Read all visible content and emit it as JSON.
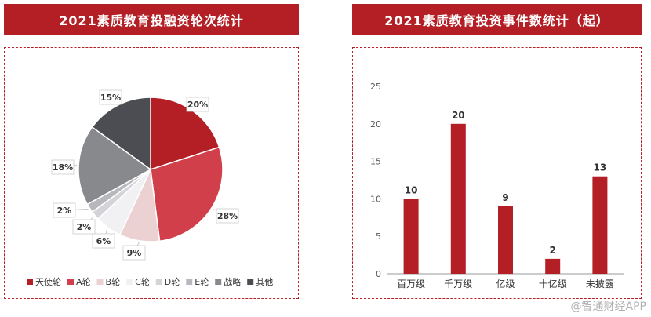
{
  "charts": [
    {
      "title": "2021素质教育投融资轮次统计",
      "chart_data": {
        "type": "pie",
        "title": "2021素质教育投融资轮次统计",
        "slices": [
          {
            "label": "天使轮",
            "value": 20,
            "text": "20%",
            "color": "#b31f24"
          },
          {
            "label": "A轮",
            "value": 28,
            "text": "28%",
            "color": "#d1404a"
          },
          {
            "label": "B轮",
            "value": 9,
            "text": "9%",
            "color": "#ecd1d3"
          },
          {
            "label": "C轮",
            "value": 6,
            "text": "6%",
            "color": "#f1f1f3"
          },
          {
            "label": "D轮",
            "value": 2,
            "text": "2%",
            "color": "#d4d4d8"
          },
          {
            "label": "E轮",
            "value": 2,
            "text": "2%",
            "color": "#b7b8bc"
          },
          {
            "label": "战略",
            "value": 18,
            "text": "18%",
            "color": "#88898d"
          },
          {
            "label": "其他",
            "value": 15,
            "text": "15%",
            "color": "#4c4d52"
          }
        ],
        "legend_position": "bottom"
      }
    },
    {
      "title": "2021素质教育投资事件数统计（起）",
      "chart_data": {
        "type": "bar",
        "title": "2021素质教育投资事件数统计（起）",
        "categories": [
          "百万级",
          "千万级",
          "亿级",
          "十亿级",
          "未披露"
        ],
        "values": [
          10,
          20,
          9,
          2,
          13
        ],
        "ylim": [
          0,
          25
        ],
        "yticks": [
          0,
          5,
          10,
          15,
          20,
          25
        ],
        "color": "#b31f24",
        "grid": false
      }
    }
  ],
  "watermark": "@智通财经APP"
}
